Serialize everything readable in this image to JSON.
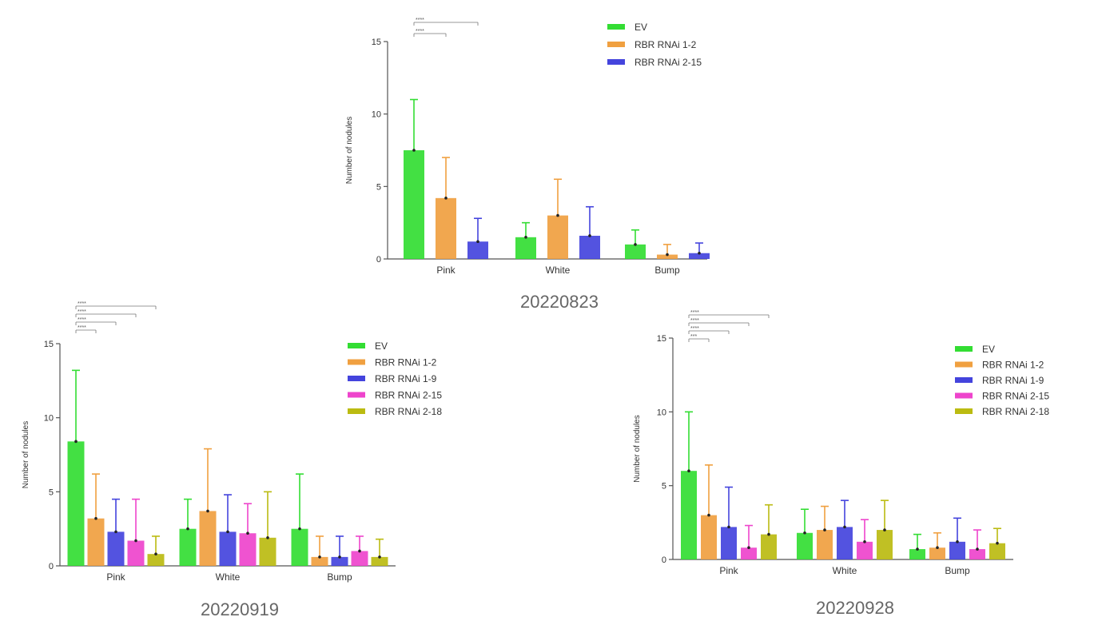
{
  "chart_data": [
    {
      "type": "bar",
      "title": "20220823",
      "ylabel": "Number of nodules",
      "categories": [
        "Pink",
        "White",
        "Bump"
      ],
      "ylim": [
        0,
        15
      ],
      "yticks": [
        0,
        5,
        10,
        15
      ],
      "legend_position": "top-right",
      "series": [
        {
          "name": "EV",
          "color": "#33dd33",
          "values": [
            7.5,
            1.5,
            1.0
          ],
          "errors": [
            3.5,
            1.0,
            1.0
          ]
        },
        {
          "name": "RBR RNAi 1-2",
          "color": "#f0a040",
          "values": [
            4.2,
            3.0,
            0.3
          ],
          "errors": [
            2.8,
            2.5,
            0.7
          ]
        },
        {
          "name": "RBR RNAi 2-15",
          "color": "#4444dd",
          "values": [
            1.2,
            1.6,
            0.4
          ],
          "errors": [
            1.6,
            2.0,
            0.7
          ]
        }
      ],
      "significance": [
        {
          "label": "****",
          "from": 0,
          "to": 2
        },
        {
          "label": "****",
          "from": 0,
          "to": 1
        }
      ]
    },
    {
      "type": "bar",
      "title": "20220919",
      "ylabel": "Number of nodules",
      "categories": [
        "Pink",
        "White",
        "Bump"
      ],
      "ylim": [
        0,
        15
      ],
      "yticks": [
        0,
        5,
        10,
        15
      ],
      "legend_position": "top-right",
      "series": [
        {
          "name": "EV",
          "color": "#33dd33",
          "values": [
            8.4,
            2.5,
            2.5
          ],
          "errors": [
            4.8,
            2.0,
            3.7
          ]
        },
        {
          "name": "RBR RNAi 1-2",
          "color": "#f0a040",
          "values": [
            3.2,
            3.7,
            0.6
          ],
          "errors": [
            3.0,
            4.2,
            1.4
          ]
        },
        {
          "name": "RBR RNAi 1-9",
          "color": "#4444dd",
          "values": [
            2.3,
            2.3,
            0.6
          ],
          "errors": [
            2.2,
            2.5,
            1.4
          ]
        },
        {
          "name": "RBR RNAi 2-15",
          "color": "#ee44cc",
          "values": [
            1.7,
            2.2,
            1.0
          ],
          "errors": [
            2.8,
            2.0,
            1.0
          ]
        },
        {
          "name": "RBR RNAi 2-18",
          "color": "#bbbb11",
          "values": [
            0.8,
            1.9,
            0.6
          ],
          "errors": [
            1.2,
            3.1,
            1.2
          ]
        }
      ],
      "significance": [
        {
          "label": "****",
          "from": 0,
          "to": 4
        },
        {
          "label": "****",
          "from": 0,
          "to": 3
        },
        {
          "label": "****",
          "from": 0,
          "to": 2
        },
        {
          "label": "****",
          "from": 0,
          "to": 1
        }
      ]
    },
    {
      "type": "bar",
      "title": "20220928",
      "ylabel": "Number of nodules",
      "categories": [
        "Pink",
        "White",
        "Bump"
      ],
      "ylim": [
        0,
        15
      ],
      "yticks": [
        0,
        5,
        10,
        15
      ],
      "legend_position": "top-right",
      "series": [
        {
          "name": "EV",
          "color": "#33dd33",
          "values": [
            6.0,
            1.8,
            0.7
          ],
          "errors": [
            4.0,
            1.6,
            1.0
          ]
        },
        {
          "name": "RBR RNAi 1-2",
          "color": "#f0a040",
          "values": [
            3.0,
            2.0,
            0.8
          ],
          "errors": [
            3.4,
            1.6,
            1.0
          ]
        },
        {
          "name": "RBR RNAi 1-9",
          "color": "#4444dd",
          "values": [
            2.2,
            2.2,
            1.2
          ],
          "errors": [
            2.7,
            1.8,
            1.6
          ]
        },
        {
          "name": "RBR RNAi 2-15",
          "color": "#ee44cc",
          "values": [
            0.8,
            1.2,
            0.7
          ],
          "errors": [
            1.5,
            1.5,
            1.3
          ]
        },
        {
          "name": "RBR RNAi 2-18",
          "color": "#bbbb11",
          "values": [
            1.7,
            2.0,
            1.1
          ],
          "errors": [
            2.0,
            2.0,
            1.0
          ]
        }
      ],
      "significance": [
        {
          "label": "****",
          "from": 0,
          "to": 4
        },
        {
          "label": "****",
          "from": 0,
          "to": 3
        },
        {
          "label": "****",
          "from": 0,
          "to": 2
        },
        {
          "label": "***",
          "from": 0,
          "to": 1
        }
      ]
    }
  ]
}
